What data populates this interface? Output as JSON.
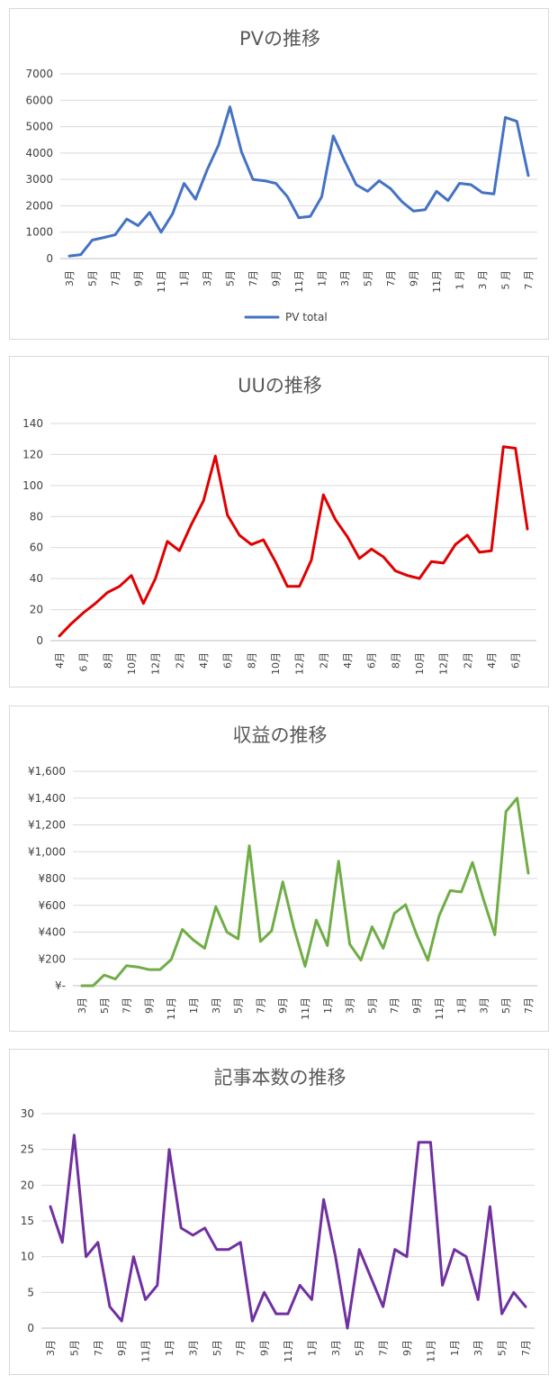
{
  "chart_data": [
    {
      "type": "line",
      "title": "PVの推移",
      "legend": "bottom",
      "grid": true,
      "ylim": [
        0,
        7000
      ],
      "yticks": [
        "0",
        "1000",
        "2000",
        "3000",
        "4000",
        "5000",
        "6000",
        "7000"
      ],
      "categories": [
        "3月",
        "4月",
        "5月",
        "6月",
        "7月",
        "8月",
        "9月",
        "10月",
        "11月",
        "12月",
        "1月",
        "2月",
        "3月",
        "4月",
        "5月",
        "6月",
        "7月",
        "8月",
        "9月",
        "10月",
        "11月",
        "12月",
        "1月",
        "2月",
        "3月",
        "4月",
        "5月",
        "6月",
        "7月",
        "8月",
        "9月",
        "10月",
        "11月",
        "12月",
        "1 月",
        "2月",
        "3 月",
        "4月",
        "5 月",
        "6月",
        "7 月"
      ],
      "series": [
        {
          "name": "PV total",
          "color": "#4472c4",
          "values": [
            100,
            150,
            700,
            800,
            900,
            1500,
            1250,
            1750,
            1000,
            1700,
            2850,
            2250,
            3350,
            4300,
            5750,
            4050,
            3000,
            2950,
            2850,
            2350,
            1550,
            1600,
            2350,
            4650,
            3700,
            2800,
            2550,
            2950,
            2650,
            2150,
            1800,
            1850,
            2550,
            2200,
            2850,
            2800,
            2500,
            2450,
            5350,
            5200,
            3150
          ]
        }
      ]
    },
    {
      "type": "line",
      "title": "UUの推移",
      "grid": true,
      "ylim": [
        0,
        140
      ],
      "yticks": [
        "0",
        "20",
        "40",
        "60",
        "80",
        "100",
        "120",
        "140"
      ],
      "categories": [
        "4月",
        "5月",
        "6 月",
        "7月",
        "8月",
        "9月",
        "10月",
        "11月",
        "12月",
        "1月",
        "2月",
        "3月",
        "4月",
        "5月",
        "6月",
        "7月",
        "8月",
        "9月",
        "10月",
        "11月",
        "12月",
        "1月",
        "2月",
        "3月",
        "4月",
        "5月",
        "6月",
        "7月",
        "8月",
        "9月",
        "10月",
        "11月",
        "12月",
        "1月",
        "2月",
        "3月",
        "4月",
        "5月",
        "6月",
        "7月"
      ],
      "series": [
        {
          "color": "#e00000",
          "values": [
            3,
            11,
            18,
            24,
            31,
            35,
            42,
            24,
            40,
            64,
            58,
            75,
            90,
            119,
            81,
            68,
            62,
            65,
            51,
            35,
            35,
            52,
            94,
            78,
            67,
            53,
            59,
            54,
            45,
            42,
            40,
            51,
            50,
            62,
            68,
            57,
            58,
            125,
            124,
            72
          ]
        }
      ]
    },
    {
      "type": "line",
      "title": "収益の推移",
      "grid": true,
      "ylim": [
        0,
        1600
      ],
      "yticks": [
        "¥-",
        "¥200",
        "¥400",
        "¥600",
        "¥800",
        "¥1,000",
        "¥1,200",
        "¥1,400",
        "¥1,600"
      ],
      "categories": [
        "3月",
        "4月",
        "5月",
        "6月",
        "7月",
        "8月",
        "9月",
        "10月",
        "11月",
        "12月",
        "1月",
        "2月",
        "3月",
        "4月",
        "5月",
        "6月",
        "7月",
        "8月",
        "9月",
        "10月",
        "11月",
        "12月",
        "1月",
        "2月",
        "3月",
        "4月",
        "5月",
        "6月",
        "7月",
        "8月",
        "9月",
        "10月",
        "11月",
        "12月",
        "1月",
        "2月",
        "3月",
        "4月",
        "5月",
        "6月",
        "7月"
      ],
      "series": [
        {
          "color": "#70ad47",
          "values": [
            0,
            0,
            80,
            50,
            150,
            140,
            120,
            120,
            195,
            420,
            340,
            280,
            590,
            400,
            350,
            1045,
            330,
            410,
            775,
            430,
            145,
            490,
            300,
            930,
            310,
            190,
            440,
            280,
            540,
            605,
            380,
            190,
            520,
            710,
            700,
            920,
            640,
            380,
            1300,
            1400,
            840
          ]
        }
      ]
    },
    {
      "type": "line",
      "title": "記事本数の推移",
      "grid": true,
      "ylim": [
        0,
        30
      ],
      "yticks": [
        "0",
        "5",
        "10",
        "15",
        "20",
        "25",
        "30"
      ],
      "categories": [
        "3月",
        "4月",
        "5月",
        "6月",
        "7月",
        "8月",
        "9月",
        "10月",
        "11月",
        "12月",
        "1月",
        "2月",
        "3月",
        "4月",
        "5月",
        "6月",
        "7月",
        "8月",
        "9月",
        "10月",
        "11月",
        "12月",
        "1月",
        "2月",
        "3月",
        "4月",
        "5月",
        "6月",
        "7月",
        "8月",
        "9月",
        "10月",
        "11月",
        "12月",
        "1月",
        "2月",
        "3月",
        "4月",
        "5月",
        "6月",
        "7月"
      ],
      "series": [
        {
          "color": "#7030a0",
          "values": [
            17,
            12,
            27,
            10,
            12,
            3,
            1,
            10,
            4,
            6,
            25,
            14,
            13,
            14,
            11,
            11,
            12,
            1,
            5,
            2,
            2,
            6,
            4,
            18,
            10,
            0,
            11,
            7,
            3,
            11,
            10,
            26,
            26,
            6,
            11,
            10,
            4,
            17,
            2,
            5,
            3
          ]
        }
      ]
    }
  ]
}
